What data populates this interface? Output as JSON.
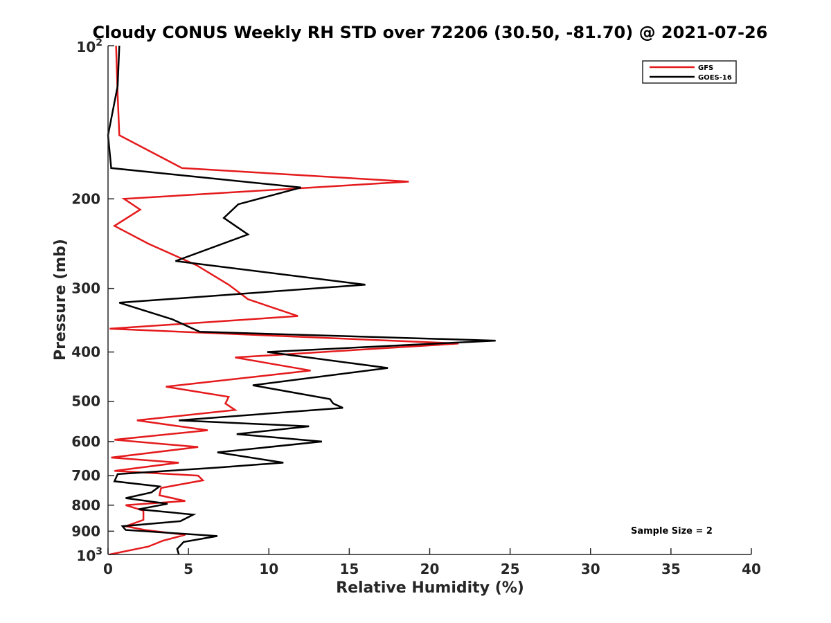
{
  "chart_data": {
    "type": "line",
    "title": "Cloudy CONUS Weekly RH STD over 72206 (30.50, -81.70) @ 2021-07-26",
    "xlabel": "Relative Humidity (%)",
    "ylabel": "Pressure (mb)",
    "xlim": [
      0,
      40
    ],
    "ylim": [
      100,
      1000
    ],
    "yscale": "log",
    "yreversed": true,
    "x_ticks": [
      0,
      5,
      10,
      15,
      20,
      25,
      30,
      35,
      40
    ],
    "y_ticks": [
      {
        "value": 100,
        "label": "10",
        "sup": "2"
      },
      {
        "value": 200,
        "label": "200",
        "sup": ""
      },
      {
        "value": 300,
        "label": "300",
        "sup": ""
      },
      {
        "value": 400,
        "label": "400",
        "sup": ""
      },
      {
        "value": 500,
        "label": "500",
        "sup": ""
      },
      {
        "value": 600,
        "label": "600",
        "sup": ""
      },
      {
        "value": 700,
        "label": "700",
        "sup": ""
      },
      {
        "value": 800,
        "label": "800",
        "sup": ""
      },
      {
        "value": 900,
        "label": "900",
        "sup": ""
      },
      {
        "value": 1000,
        "label": "10",
        "sup": "3"
      }
    ],
    "legend_position": "top-right",
    "annotation": "Sample Size = 2",
    "series": [
      {
        "name": "GFS",
        "color": "#e41a1c",
        "rh": [
          0.5,
          0.6,
          0.7,
          4.6,
          18.7,
          1.0,
          2.0,
          0.4,
          2.5,
          5.5,
          7.5,
          8.7,
          11.8,
          0.1,
          21.8,
          7.9,
          12.6,
          3.6,
          7.5,
          7.3,
          7.9,
          1.8,
          6.2,
          0.4,
          5.6,
          0.2,
          4.4,
          0.4,
          5.6,
          5.9,
          3.3,
          3.2,
          4.8,
          1.1,
          2.2,
          2.2,
          1.1,
          2.3,
          4.8,
          3.4,
          2.5,
          0.1
        ],
        "pressure": [
          100,
          125,
          150,
          174,
          185,
          200,
          210,
          226,
          245,
          270,
          295,
          315,
          340,
          360,
          385,
          410,
          435,
          468,
          490,
          505,
          520,
          545,
          570,
          595,
          615,
          645,
          660,
          685,
          700,
          715,
          740,
          765,
          785,
          800,
          820,
          855,
          880,
          895,
          915,
          940,
          965,
          1000
        ]
      },
      {
        "name": "GOES-16",
        "color": "#000000",
        "rh": [
          0.7,
          0.6,
          0.0,
          0.2,
          12.0,
          8.1,
          7.2,
          8.7,
          4.2,
          16.0,
          0.7,
          4.0,
          5.7,
          24.1,
          9.9,
          17.4,
          9.0,
          13.8,
          14.0,
          14.6,
          4.4,
          12.5,
          8.0,
          13.3,
          6.8,
          10.9,
          6.8,
          0.6,
          0.4,
          3.2,
          2.7,
          1.1,
          3.7,
          1.9,
          5.3,
          4.5,
          0.9,
          1.1,
          6.8,
          4.7,
          4.3,
          4.4
        ],
        "pressure": [
          100,
          120,
          150,
          174,
          190,
          205,
          218,
          235,
          265,
          295,
          320,
          345,
          365,
          380,
          400,
          430,
          465,
          495,
          505,
          515,
          545,
          560,
          580,
          600,
          630,
          660,
          675,
          695,
          718,
          735,
          755,
          775,
          795,
          815,
          835,
          860,
          880,
          895,
          920,
          945,
          975,
          1000
        ]
      }
    ]
  }
}
